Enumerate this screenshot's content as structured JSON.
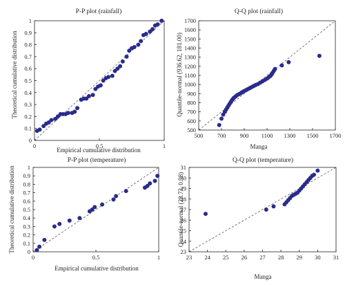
{
  "chart_data": [
    {
      "type": "scatter",
      "title": "P-P plot (rainfall)",
      "xlabel": "Empirical cumulative distribution",
      "ylabel": "Theoretical cumulative distribution",
      "xlim": [
        0,
        1
      ],
      "ylim": [
        0,
        1
      ],
      "xticks": [
        "0",
        "0.5",
        "1"
      ],
      "yticks": [
        "0",
        "0.1",
        "0.2",
        "0.3",
        "0.4",
        "0.5",
        "0.6",
        "0.7",
        "0.8",
        "0.9",
        "1"
      ],
      "reference_line": "diagonal",
      "point_color": "#2b2b8c",
      "points": [
        [
          0.02,
          0.08
        ],
        [
          0.04,
          0.09
        ],
        [
          0.07,
          0.12
        ],
        [
          0.09,
          0.14
        ],
        [
          0.11,
          0.15
        ],
        [
          0.13,
          0.17
        ],
        [
          0.16,
          0.18
        ],
        [
          0.18,
          0.2
        ],
        [
          0.2,
          0.22
        ],
        [
          0.22,
          0.22
        ],
        [
          0.24,
          0.22
        ],
        [
          0.26,
          0.23
        ],
        [
          0.29,
          0.23
        ],
        [
          0.31,
          0.24
        ],
        [
          0.33,
          0.27
        ],
        [
          0.36,
          0.34
        ],
        [
          0.38,
          0.35
        ],
        [
          0.4,
          0.35
        ],
        [
          0.42,
          0.37
        ],
        [
          0.45,
          0.38
        ],
        [
          0.47,
          0.43
        ],
        [
          0.49,
          0.45
        ],
        [
          0.51,
          0.46
        ],
        [
          0.53,
          0.5
        ],
        [
          0.55,
          0.52
        ],
        [
          0.57,
          0.53
        ],
        [
          0.6,
          0.54
        ],
        [
          0.62,
          0.58
        ],
        [
          0.64,
          0.6
        ],
        [
          0.66,
          0.62
        ],
        [
          0.68,
          0.66
        ],
        [
          0.71,
          0.7
        ],
        [
          0.73,
          0.75
        ],
        [
          0.75,
          0.77
        ],
        [
          0.77,
          0.78
        ],
        [
          0.8,
          0.8
        ],
        [
          0.82,
          0.83
        ],
        [
          0.84,
          0.88
        ],
        [
          0.86,
          0.89
        ],
        [
          0.89,
          0.91
        ],
        [
          0.91,
          0.93
        ],
        [
          0.93,
          0.96
        ],
        [
          0.95,
          0.97
        ],
        [
          0.98,
          1.0
        ]
      ]
    },
    {
      "type": "scatter",
      "title": "Q-Q plot (rainfall)",
      "xlabel": "Manga",
      "ylabel": "Quantile-normal (936.62, 181.00)",
      "xlim": [
        500,
        1700
      ],
      "ylim": [
        500,
        1700
      ],
      "xticks": [
        "500",
        "700",
        "900",
        "1100",
        "1300",
        "1500",
        "1700"
      ],
      "yticks": [
        "500",
        "600",
        "700",
        "800",
        "900",
        "1000",
        "1100",
        "1200",
        "1300",
        "1400",
        "1500",
        "1600",
        "1700"
      ],
      "reference_line": "diagonal",
      "point_color": "#2b2b8c",
      "points": [
        [
          680,
          555
        ],
        [
          700,
          625
        ],
        [
          715,
          670
        ],
        [
          730,
          700
        ],
        [
          740,
          725
        ],
        [
          750,
          745
        ],
        [
          760,
          765
        ],
        [
          770,
          785
        ],
        [
          780,
          805
        ],
        [
          790,
          825
        ],
        [
          800,
          840
        ],
        [
          810,
          855
        ],
        [
          825,
          870
        ],
        [
          840,
          885
        ],
        [
          855,
          895
        ],
        [
          870,
          905
        ],
        [
          880,
          915
        ],
        [
          895,
          925
        ],
        [
          910,
          935
        ],
        [
          925,
          945
        ],
        [
          940,
          955
        ],
        [
          955,
          965
        ],
        [
          970,
          975
        ],
        [
          985,
          985
        ],
        [
          1000,
          995
        ],
        [
          1020,
          1005
        ],
        [
          1040,
          1020
        ],
        [
          1060,
          1035
        ],
        [
          1080,
          1050
        ],
        [
          1100,
          1065
        ],
        [
          1115,
          1080
        ],
        [
          1130,
          1095
        ],
        [
          1140,
          1110
        ],
        [
          1150,
          1130
        ],
        [
          1160,
          1150
        ],
        [
          1170,
          1170
        ],
        [
          1230,
          1210
        ],
        [
          1290,
          1245
        ],
        [
          1560,
          1315
        ]
      ]
    },
    {
      "type": "scatter",
      "title": "P-P plot (temperature)",
      "xlabel": "Empirical cumulative distribution",
      "ylabel": "Theoretical cumulative distribution",
      "xlim": [
        0,
        1
      ],
      "ylim": [
        0,
        1
      ],
      "xticks": [
        "0",
        "0.5",
        "1"
      ],
      "yticks": [
        "0",
        "0.1",
        "0.2",
        "0.3",
        "0.4",
        "0.5",
        "0.6",
        "0.7",
        "0.8",
        "0.9",
        "1"
      ],
      "reference_line": "diagonal",
      "point_color": "#2b2b8c",
      "points": [
        [
          0.03,
          0.02
        ],
        [
          0.05,
          0.06
        ],
        [
          0.09,
          0.14
        ],
        [
          0.17,
          0.3
        ],
        [
          0.21,
          0.33
        ],
        [
          0.29,
          0.37
        ],
        [
          0.37,
          0.4
        ],
        [
          0.45,
          0.48
        ],
        [
          0.47,
          0.5
        ],
        [
          0.49,
          0.53
        ],
        [
          0.55,
          0.56
        ],
        [
          0.64,
          0.62
        ],
        [
          0.66,
          0.66
        ],
        [
          0.74,
          0.72
        ],
        [
          0.89,
          0.76
        ],
        [
          0.91,
          0.78
        ],
        [
          0.93,
          0.81
        ],
        [
          0.97,
          0.84
        ],
        [
          0.99,
          0.9
        ]
      ]
    },
    {
      "type": "scatter",
      "title": "Q-Q plot (temperature)",
      "xlabel": "Manga",
      "ylabel": "Quantile-normal (28.73, 0.98)",
      "xlim": [
        23,
        31
      ],
      "ylim": [
        23,
        31
      ],
      "xticks": [
        "23",
        "24",
        "25",
        "26",
        "27",
        "28",
        "29",
        "30",
        "31"
      ],
      "yticks": [
        "23",
        "24",
        "25",
        "26",
        "27",
        "28",
        "29",
        "30",
        "31"
      ],
      "reference_line": "diagonal",
      "point_color": "#2b2b8c",
      "points": [
        [
          23.9,
          26.6
        ],
        [
          27.2,
          27.0
        ],
        [
          27.6,
          27.3
        ],
        [
          28.2,
          27.5
        ],
        [
          28.3,
          27.7
        ],
        [
          28.4,
          27.9
        ],
        [
          28.5,
          28.1
        ],
        [
          28.6,
          28.3
        ],
        [
          28.7,
          28.4
        ],
        [
          28.8,
          28.5
        ],
        [
          28.9,
          28.6
        ],
        [
          29.0,
          28.8
        ],
        [
          29.1,
          29.0
        ],
        [
          29.2,
          29.2
        ],
        [
          29.3,
          29.4
        ],
        [
          29.4,
          29.6
        ],
        [
          29.5,
          29.8
        ],
        [
          29.6,
          30.0
        ],
        [
          29.7,
          30.2
        ],
        [
          29.8,
          30.3
        ],
        [
          30.0,
          30.7
        ]
      ]
    }
  ]
}
